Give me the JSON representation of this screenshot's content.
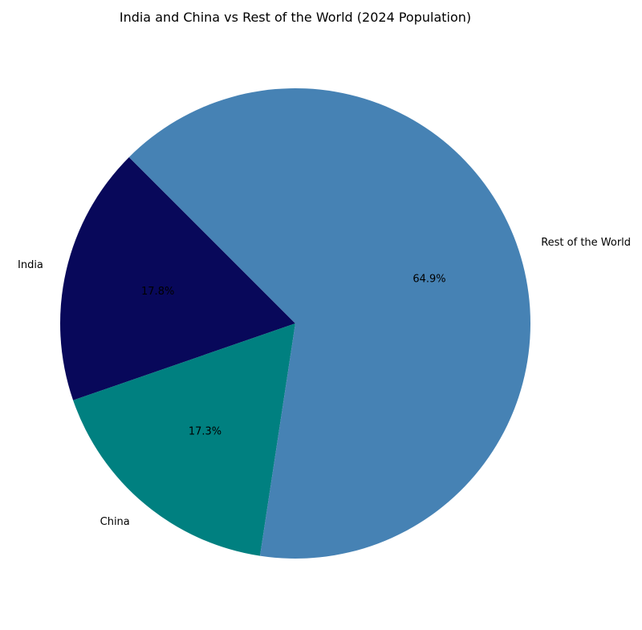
{
  "chart_data": {
    "type": "pie",
    "title": "India and China vs Rest of the World (2024 Population)",
    "categories": [
      "India",
      "China",
      "Rest of the World"
    ],
    "values": [
      17.8,
      17.3,
      64.9
    ],
    "percent_labels": [
      "17.8%",
      "17.3%",
      "64.9%"
    ],
    "colors": [
      "#08085a",
      "#008080",
      "#4682b4"
    ],
    "start_angle_deg": 135,
    "direction": "counterclockwise",
    "legend": "none"
  }
}
